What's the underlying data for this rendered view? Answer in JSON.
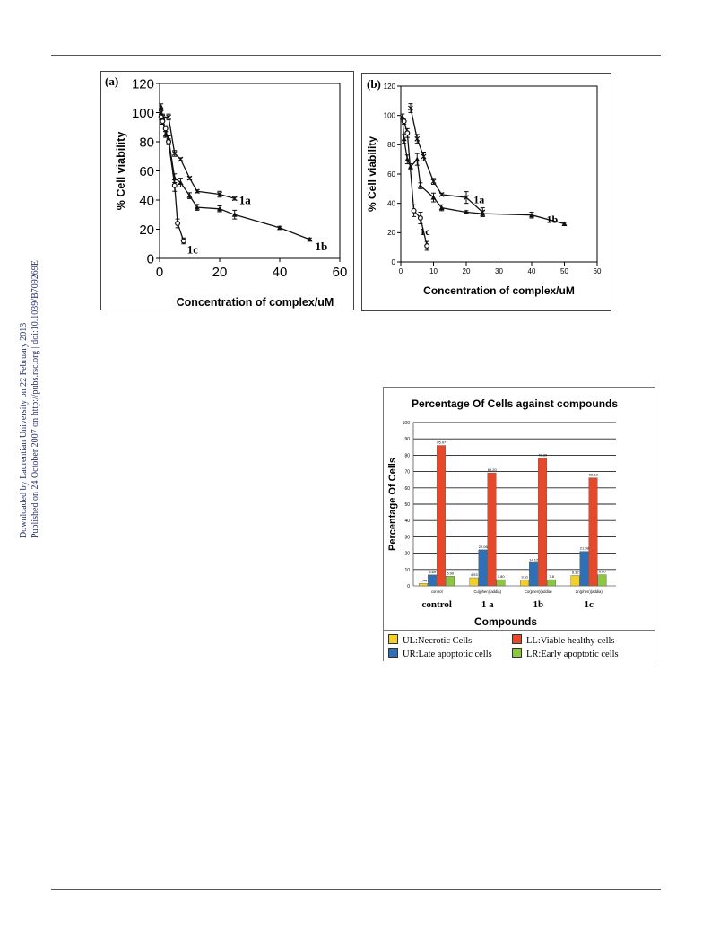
{
  "side_note": {
    "line1": "Downloaded by Laurentian University on 22 February 2013",
    "line2": "Published on 24 October 2007 on http://pubs.rsc.org | doi:10.1039/B709269E"
  },
  "chart_data": [
    {
      "type": "line",
      "panel_label": "(a)",
      "xlabel": "Concentration of complex/uM",
      "ylabel": "% Cell viability",
      "xlim": [
        0,
        60
      ],
      "ylim": [
        0,
        120
      ],
      "xticks": [
        "0",
        "20",
        "40",
        "60"
      ],
      "yticks": [
        "0",
        "20",
        "40",
        "60",
        "80",
        "100",
        "120"
      ],
      "series": [
        {
          "name": "1a",
          "x": [
            0.5,
            1,
            3,
            5,
            7,
            10,
            12.5,
            20,
            25
          ],
          "y": [
            100,
            97,
            97,
            72,
            68,
            55,
            46,
            44,
            41
          ],
          "err": [
            2,
            2,
            2,
            2,
            1,
            1,
            1,
            2,
            1
          ]
        },
        {
          "name": "1b",
          "x": [
            0.5,
            1,
            2,
            3,
            5,
            7,
            10,
            12.5,
            20,
            25,
            40,
            50
          ],
          "y": [
            104,
            96,
            85,
            82,
            55,
            52,
            43,
            35,
            34,
            30,
            21,
            13
          ],
          "err": [
            2,
            2,
            2,
            2,
            3,
            3,
            2,
            2,
            2,
            3,
            1,
            1
          ]
        },
        {
          "name": "1c",
          "x": [
            0.5,
            1,
            2,
            3,
            5,
            6,
            8
          ],
          "y": [
            97,
            94,
            89,
            80,
            50,
            24,
            12
          ],
          "err": [
            2,
            2,
            2,
            2,
            4,
            3,
            2
          ]
        }
      ]
    },
    {
      "type": "line",
      "panel_label": "(b)",
      "xlabel": "Concentration of complex/uM",
      "ylabel": "% Cell viability",
      "xlim": [
        0,
        60
      ],
      "ylim": [
        0,
        120
      ],
      "xticks": [
        "0",
        "10",
        "20",
        "30",
        "40",
        "50",
        "60"
      ],
      "yticks": [
        "0",
        "20",
        "40",
        "60",
        "80",
        "100",
        "120"
      ],
      "series": [
        {
          "name": "1a",
          "x": [
            3,
            5,
            7,
            10,
            12.5,
            20,
            25
          ],
          "y": [
            105,
            84,
            72,
            55,
            46,
            44,
            34
          ],
          "err": [
            3,
            3,
            3,
            2,
            1,
            4,
            3
          ]
        },
        {
          "name": "1b",
          "x": [
            0.5,
            1,
            2,
            3,
            5,
            6,
            10,
            12.5,
            20,
            25,
            40,
            50
          ],
          "y": [
            99,
            84,
            70,
            65,
            70,
            52,
            44,
            37,
            34,
            33,
            32,
            26
          ],
          "err": [
            2,
            3,
            3,
            2,
            4,
            2,
            3,
            2,
            1,
            2,
            2,
            1
          ]
        },
        {
          "name": "1c",
          "x": [
            1,
            2,
            4,
            6,
            8
          ],
          "y": [
            96,
            88,
            35,
            30,
            11
          ],
          "err": [
            2,
            3,
            4,
            4,
            3
          ]
        }
      ]
    },
    {
      "type": "bar",
      "title": "Percentage Of Cells against compounds",
      "xlabel": "Compounds",
      "ylabel": "Percentage Of Cells",
      "ylim": [
        0,
        100
      ],
      "yticks": [
        "0",
        "10",
        "20",
        "30",
        "40",
        "50",
        "60",
        "70",
        "80",
        "90",
        "100"
      ],
      "categories": [
        "control",
        "1 a",
        "1b",
        "1c"
      ],
      "category_sublabels": [
        "control",
        "Cu(phen)(addia)",
        "Co(phen)(addia)",
        "Zn(phen)(addia)"
      ],
      "series": [
        {
          "name": "UL:Necrotic Cells",
          "color": "#f2d028",
          "values": [
            1.44,
            4.93,
            3.51,
            6.32
          ],
          "labels": [
            "1.44",
            "4.93",
            "3.51",
            "6.32"
          ]
        },
        {
          "name": "UR:Late apoptotic cells",
          "color": "#2f6fb5",
          "values": [
            6.69,
            22.06,
            14.12,
            21.08
          ],
          "labels": [
            "6.69",
            "22.06",
            "14.12",
            "21.08"
          ]
        },
        {
          "name": "LL:Viable healthy cells",
          "color": "#e8482a",
          "values": [
            85.97,
            69.2,
            78.39,
            66.13
          ],
          "labels": [
            "85.97",
            "69.20",
            "78.39",
            "66.13"
          ]
        },
        {
          "name": "LR:Early apoptotic cells",
          "color": "#8dc63f",
          "values": [
            5.9,
            3.8,
            3.8,
            6.8
          ],
          "labels": [
            "5.90",
            "3.80",
            "3.8",
            "6.80"
          ]
        }
      ]
    }
  ]
}
